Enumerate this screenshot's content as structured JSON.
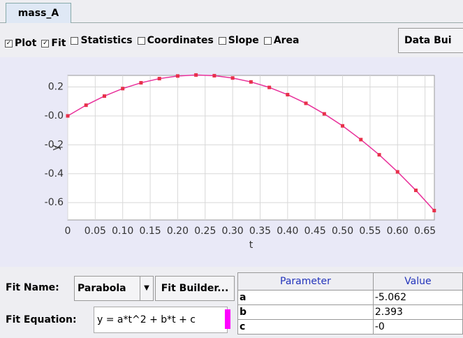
{
  "tab": "mass_A",
  "toolbar": {
    "checkboxes": [
      {
        "label": "Plot",
        "checked": true
      },
      {
        "label": "Fit",
        "checked": true
      },
      {
        "label": "Statistics",
        "checked": false
      },
      {
        "label": "Coordinates",
        "checked": false
      },
      {
        "label": "Slope",
        "checked": false
      },
      {
        "label": "Area",
        "checked": false
      }
    ],
    "button": "Data Bui"
  },
  "chart_data": {
    "type": "line",
    "xlabel": "t",
    "ylabel": "y",
    "x": [
      0,
      0.0333,
      0.0667,
      0.1,
      0.1333,
      0.1667,
      0.2,
      0.2333,
      0.2667,
      0.3,
      0.3333,
      0.3667,
      0.4,
      0.4333,
      0.4667,
      0.5,
      0.5333,
      0.5667,
      0.6,
      0.6333,
      0.6667
    ],
    "series": [
      {
        "color": "#e8309a",
        "marker_color": "#e8304a",
        "values": [
          0,
          0.074,
          0.137,
          0.189,
          0.229,
          0.258,
          0.276,
          0.283,
          0.278,
          0.262,
          0.235,
          0.197,
          0.147,
          0.087,
          0.014,
          -0.069,
          -0.164,
          -0.269,
          -0.387,
          -0.515,
          -0.655
        ]
      }
    ],
    "xlim": [
      0,
      0.667
    ],
    "ylim": [
      -0.72,
      0.28
    ],
    "xticks": [
      0,
      0.05,
      {
        "value": 0.1,
        "label": "0.10"
      },
      0.15,
      {
        "value": 0.2,
        "label": "0.20"
      },
      0.25,
      {
        "value": 0.3,
        "label": "0.30"
      },
      0.35,
      {
        "value": 0.4,
        "label": "0.40"
      },
      0.45,
      {
        "value": 0.5,
        "label": "0.50"
      },
      0.55,
      {
        "value": 0.6,
        "label": "0.60"
      },
      0.65
    ],
    "yticks": [
      0.2,
      {
        "value": 0,
        "label": "-0.0"
      },
      -0.2,
      -0.4,
      -0.6
    ],
    "grid": true
  },
  "fit": {
    "name_label": "Fit Name:",
    "name": "Parabola",
    "builder": "Fit Builder...",
    "equation_label": "Fit Equation:",
    "equation": "y = a*t^2 + b*t + c"
  },
  "table": {
    "headers": [
      "Parameter",
      "Value"
    ],
    "rows": [
      [
        "a",
        "-5.062"
      ],
      [
        "b",
        "2.393"
      ],
      [
        "c",
        "-0"
      ]
    ]
  }
}
